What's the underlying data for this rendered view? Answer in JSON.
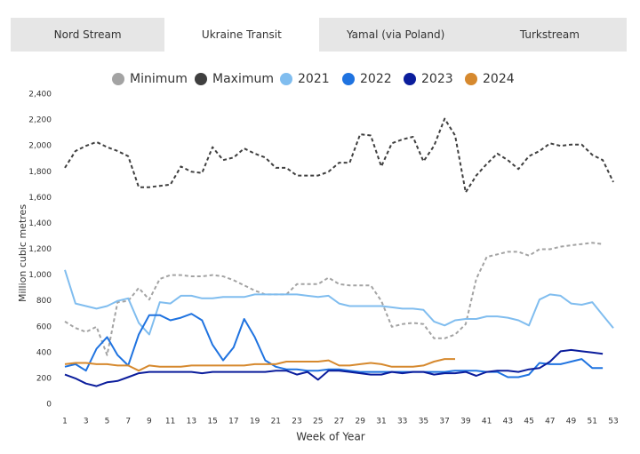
{
  "tabs": [
    {
      "label": "Nord Stream",
      "active": false
    },
    {
      "label": "Ukraine Transit",
      "active": true
    },
    {
      "label": "Yamal (via Poland)",
      "active": false
    },
    {
      "label": "Turkstream",
      "active": false
    }
  ],
  "chart_data": {
    "type": "line",
    "y_label": "Million cubic metres",
    "x_label": "Week of Year",
    "x": [
      1,
      2,
      3,
      4,
      5,
      6,
      7,
      8,
      9,
      10,
      11,
      12,
      13,
      14,
      15,
      16,
      17,
      18,
      19,
      20,
      21,
      22,
      23,
      24,
      25,
      26,
      27,
      28,
      29,
      30,
      31,
      32,
      33,
      34,
      35,
      36,
      37,
      38,
      39,
      40,
      41,
      42,
      43,
      44,
      45,
      46,
      47,
      48,
      49,
      50,
      51,
      52,
      53
    ],
    "xlim": [
      1,
      53
    ],
    "xticks": [
      1,
      3,
      5,
      7,
      9,
      11,
      13,
      15,
      17,
      19,
      21,
      23,
      25,
      27,
      29,
      31,
      33,
      35,
      37,
      39,
      41,
      43,
      45,
      47,
      49,
      51,
      53
    ],
    "ylim": [
      0,
      2400
    ],
    "yticks": [
      0,
      200,
      400,
      600,
      800,
      {
        "value": 1000,
        "label": "1,000"
      },
      {
        "value": 1200,
        "label": "1,200"
      },
      {
        "value": 1400,
        "label": "1,400"
      },
      {
        "value": 1600,
        "label": "1,600"
      },
      {
        "value": 1800,
        "label": "1,800"
      },
      {
        "value": 2000,
        "label": "2,000"
      },
      {
        "value": 2200,
        "label": "2,200"
      },
      {
        "value": 2400,
        "label": "2,400"
      }
    ],
    "series": [
      {
        "name": "Minimum",
        "color": "#a3a3a3",
        "dashed": true,
        "values": [
          640,
          590,
          560,
          600,
          380,
          790,
          800,
          900,
          810,
          970,
          1000,
          1000,
          990,
          990,
          1000,
          990,
          960,
          920,
          880,
          850,
          850,
          850,
          930,
          930,
          930,
          980,
          930,
          920,
          920,
          920,
          800,
          600,
          620,
          630,
          620,
          510,
          510,
          540,
          620,
          970,
          1140,
          1160,
          1180,
          1180,
          1150,
          1200,
          1200,
          1220,
          1230,
          1240,
          1250,
          1240,
          null
        ]
      },
      {
        "name": "Maximum",
        "color": "#3f3f3f",
        "dashed": true,
        "values": [
          1830,
          1960,
          2000,
          2030,
          1990,
          1960,
          1920,
          1680,
          1680,
          1690,
          1700,
          1840,
          1800,
          1790,
          1990,
          1890,
          1910,
          1980,
          1940,
          1910,
          1830,
          1830,
          1770,
          1770,
          1770,
          1800,
          1870,
          1870,
          2090,
          2080,
          1840,
          2020,
          2050,
          2070,
          1880,
          2000,
          2210,
          2080,
          1640,
          1770,
          1860,
          1940,
          1890,
          1820,
          1920,
          1960,
          2020,
          2000,
          2010,
          2010,
          1930,
          1890,
          1720
        ]
      },
      {
        "name": "2021",
        "color": "#80bdef",
        "dashed": false,
        "values": [
          1040,
          780,
          760,
          740,
          760,
          800,
          820,
          630,
          540,
          790,
          780,
          840,
          840,
          820,
          820,
          830,
          830,
          830,
          850,
          850,
          850,
          850,
          850,
          840,
          830,
          840,
          780,
          760,
          760,
          760,
          760,
          750,
          740,
          740,
          730,
          640,
          610,
          650,
          660,
          660,
          680,
          680,
          670,
          650,
          610,
          810,
          850,
          840,
          780,
          770,
          790,
          690,
          590
        ]
      },
      {
        "name": "2022",
        "color": "#1f73e0",
        "dashed": false,
        "values": [
          290,
          310,
          260,
          430,
          520,
          380,
          300,
          540,
          690,
          690,
          650,
          670,
          700,
          650,
          460,
          340,
          440,
          660,
          520,
          340,
          290,
          270,
          270,
          260,
          260,
          270,
          270,
          260,
          250,
          250,
          250,
          250,
          250,
          250,
          250,
          250,
          250,
          260,
          260,
          260,
          250,
          250,
          210,
          210,
          230,
          320,
          310,
          310,
          330,
          350,
          280,
          280,
          null
        ]
      },
      {
        "name": "2023",
        "color": "#0b1d9c",
        "dashed": false,
        "values": [
          230,
          200,
          160,
          140,
          170,
          180,
          210,
          240,
          250,
          250,
          250,
          250,
          250,
          240,
          250,
          250,
          250,
          250,
          250,
          250,
          260,
          260,
          230,
          250,
          190,
          260,
          260,
          250,
          240,
          230,
          230,
          250,
          240,
          250,
          250,
          230,
          240,
          240,
          250,
          220,
          250,
          260,
          260,
          250,
          270,
          280,
          330,
          410,
          420,
          410,
          400,
          390,
          null
        ]
      },
      {
        "name": "2024",
        "color": "#d6892e",
        "dashed": false,
        "values": [
          310,
          320,
          320,
          310,
          310,
          300,
          300,
          260,
          300,
          290,
          290,
          290,
          300,
          300,
          300,
          300,
          300,
          300,
          310,
          310,
          310,
          330,
          330,
          330,
          330,
          340,
          300,
          300,
          310,
          320,
          310,
          290,
          290,
          290,
          300,
          330,
          350,
          350,
          null,
          null,
          null,
          null,
          null,
          null,
          null,
          null,
          null,
          null,
          null,
          null,
          null,
          null,
          null
        ]
      }
    ],
    "legend": "top",
    "grid": false
  }
}
